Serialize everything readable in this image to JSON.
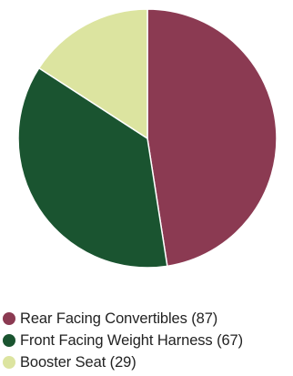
{
  "chart_data": {
    "type": "pie",
    "slices": [
      {
        "label": "Rear Facing Convertibles (87)",
        "value": 87,
        "color": "#8b3a52"
      },
      {
        "label": "Front Facing Weight Harness (67)",
        "value": 67,
        "color": "#1a5430"
      },
      {
        "label": "Booster Seat (29)",
        "value": 29,
        "color": "#dce4a0"
      }
    ],
    "legend_position": "bottom",
    "start_angle": "12 o'clock",
    "direction": "clockwise"
  }
}
